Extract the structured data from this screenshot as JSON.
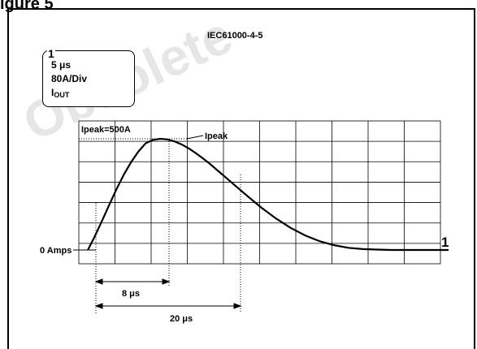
{
  "header_fragment": "igure 5",
  "title": "IEC61000-4-5",
  "legend": {
    "marker": "1",
    "timebase": "5 μs",
    "scale": "80A/Div",
    "channel_main": "I",
    "channel_sub": "OUT"
  },
  "annotations": {
    "ipeak_value": "Ipeak=500A",
    "ipeak_label": "Ipeak",
    "zero_label": "0 Amps",
    "trace_marker": "1",
    "rise_time": "8 μs",
    "half_time": "20 μs"
  },
  "chart_data": {
    "type": "line",
    "series": [
      {
        "x": [
          0,
          1,
          2,
          3,
          4,
          5,
          6,
          7,
          8,
          9,
          10,
          11,
          12,
          13,
          14,
          15,
          16,
          17,
          18,
          19,
          20,
          22,
          24,
          26,
          28,
          30,
          32,
          34,
          36,
          38,
          40,
          42,
          44,
          46,
          48
        ],
        "y": [
          0,
          64,
          134,
          206,
          276,
          340,
          396,
          443,
          480,
          495,
          500,
          497,
          488,
          474,
          456,
          434,
          410,
          384,
          356,
          328,
          300,
          244,
          190,
          142,
          100,
          66,
          40,
          22,
          10,
          4,
          2,
          0,
          0,
          0,
          0
        ]
      }
    ],
    "x_unit_per_div": "5 μs",
    "y_unit_per_div": "80 A",
    "ylim": [
      0,
      560
    ],
    "xlim": [
      -1.25,
      48.75
    ],
    "grid": true
  }
}
